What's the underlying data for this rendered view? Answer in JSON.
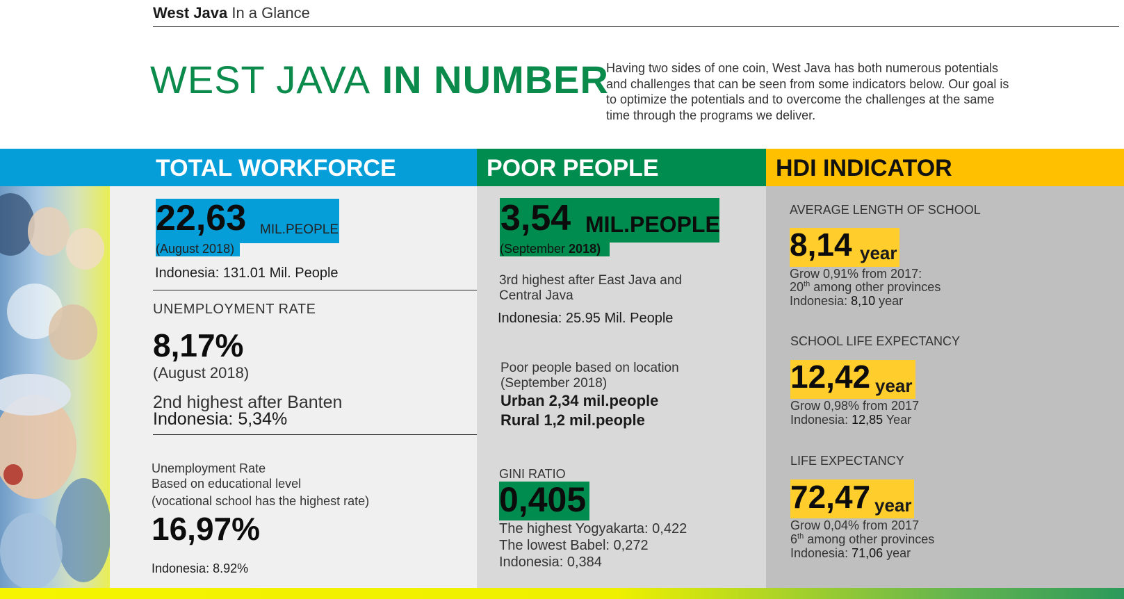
{
  "header": {
    "brand": "West Java",
    "subtitle": "In a Glance"
  },
  "title": {
    "light": "WEST JAVA",
    "bold": "IN NUMBER"
  },
  "intro": "Having two sides of one coin, West Java has both numerous potentials and challenges that can be seen from some indicators below. Our goal is to optimize the potentials and to overcome the challenges at the same time through the programs we deliver.",
  "colors": {
    "blue": "#069ed9",
    "green": "#008c4e",
    "yellow": "#ffc000",
    "title_green": "#0a8a4b"
  },
  "workforce": {
    "heading": "TOTAL WORKFORCE",
    "value": "22,63",
    "unit": "MIL.PEOPLE",
    "date": "(August 2018)",
    "indonesia": "Indonesia: 131.01 Mil. People",
    "unemployment": {
      "label": "UNEMPLOYMENT RATE",
      "value": "8,17%",
      "date": "(August 2018)",
      "rank": "2nd highest after Banten",
      "indonesia": "Indonesia: 5,34%"
    },
    "education": {
      "line1": "Unemployment Rate",
      "line2": "Based on educational level",
      "line3": "(vocational school has the highest rate)",
      "value": "16,97%",
      "indonesia": "Indonesia: 8.92%"
    }
  },
  "poor": {
    "heading": "POOR PEOPLE",
    "value": "3,54",
    "unit": "MIL.PEOPLE",
    "date_prefix": "(September ",
    "date_year": "2018)",
    "rank_line1": "3rd highest after East Java and",
    "rank_line2": "Central Java",
    "indonesia": "Indonesia: 25.95 Mil. People",
    "location": {
      "line1": "Poor people based on location",
      "line2": "(September 2018)",
      "urban": "Urban 2,34 mil.people",
      "rural": "Rural 1,2 mil.people"
    },
    "gini": {
      "label": "GINI RATIO",
      "value": "0,405",
      "highest": "The highest Yogyakarta: 0,422",
      "lowest": "The lowest Babel: 0,272",
      "indonesia": "Indonesia: 0,384"
    }
  },
  "hdi": {
    "heading": "HDI INDICATOR",
    "school_length": {
      "label": "AVERAGE LENGTH OF SCHOOL",
      "value": "8,14",
      "unit": "year",
      "grow": "Grow 0,91% from 2017:",
      "rank_num": "20",
      "rank_sup": "th",
      "rank_rest": " among other provinces",
      "indo_label": "Indonesia: ",
      "indo_value": "8,10",
      "indo_unit": " year"
    },
    "school_expectancy": {
      "label": "SCHOOL LIFE EXPECTANCY",
      "value": "12,42",
      "unit": "year",
      "grow": "Grow 0,98% from 2017",
      "indo_label": "Indonesia: ",
      "indo_value": "12,85",
      "indo_unit": " Year"
    },
    "life_expectancy": {
      "label": "LIFE EXPECTANCY",
      "value": "72,47",
      "unit": "year",
      "grow": "Grow 0,04% from 2017",
      "rank_num": "6",
      "rank_sup": "th",
      "rank_rest": " among other provinces",
      "indo_label": "Indonesia: ",
      "indo_value": "71,06",
      "indo_unit": " year"
    }
  }
}
